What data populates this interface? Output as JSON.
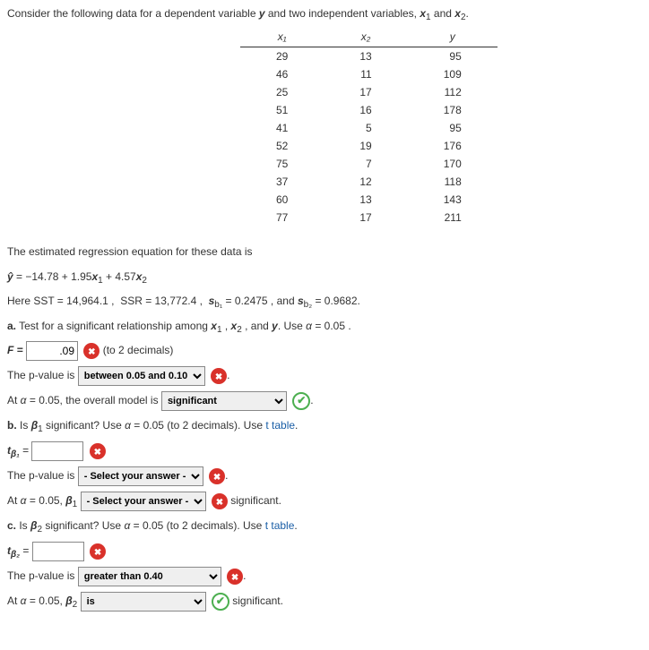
{
  "intro": "Consider the following data for a dependent variable y and two independent variables, x₁ and x₂.",
  "table": {
    "headers": [
      "x₁",
      "x₂",
      "y"
    ],
    "rows": [
      [
        "29",
        "13",
        "95"
      ],
      [
        "46",
        "11",
        "109"
      ],
      [
        "25",
        "17",
        "112"
      ],
      [
        "51",
        "16",
        "178"
      ],
      [
        "41",
        "5",
        "95"
      ],
      [
        "52",
        "19",
        "176"
      ],
      [
        "75",
        "7",
        "170"
      ],
      [
        "37",
        "12",
        "118"
      ],
      [
        "60",
        "13",
        "143"
      ],
      [
        "77",
        "17",
        "211"
      ]
    ]
  },
  "regression_intro": "The estimated regression equation for these data is",
  "equation_text": "ŷ = −14.78 + 1.95x₁ + 4.57x₂",
  "here_line_prefix": "Here ",
  "here_line_rest": "SST = 14,964.1 , SSR = 13,772.4 , s_b₁ = 0.2475 , and s_b₂ = 0.9682.",
  "a_prompt_prefix": "a. Test for a significant relationship among ",
  "a_prompt_rest": "x₁ , x₂ , and y. Use α = 0.05 .",
  "F_label": "F =",
  "F_value": ".09",
  "decimals_note": "(to 2 decimals)",
  "pvalue_label": "The p-value is",
  "pvalue_a": "between 0.05 and 0.10",
  "model_prefix": "At α = 0.05, the overall model is",
  "model_select": "significant",
  "b_prompt": "b. Is β₁ significant? Use α = 0.05 (to 2 decimals). Use ",
  "t_table_link": "t table",
  "tb1_label": "t_β₁ =",
  "pvalue_b": "- Select your answer -",
  "b1_prefix": "At α = 0.05, β₁",
  "b1_select": "- Select your answer -",
  "sig_suffix": "significant.",
  "c_prompt": "c. Is β₂ significant? Use α = 0.05 (to 2 decimals). Use ",
  "tb2_label": "t_β₂ =",
  "pvalue_c": "greater than 0.40",
  "b2_prefix": "At α = 0.05, β₂",
  "b2_select": "is"
}
